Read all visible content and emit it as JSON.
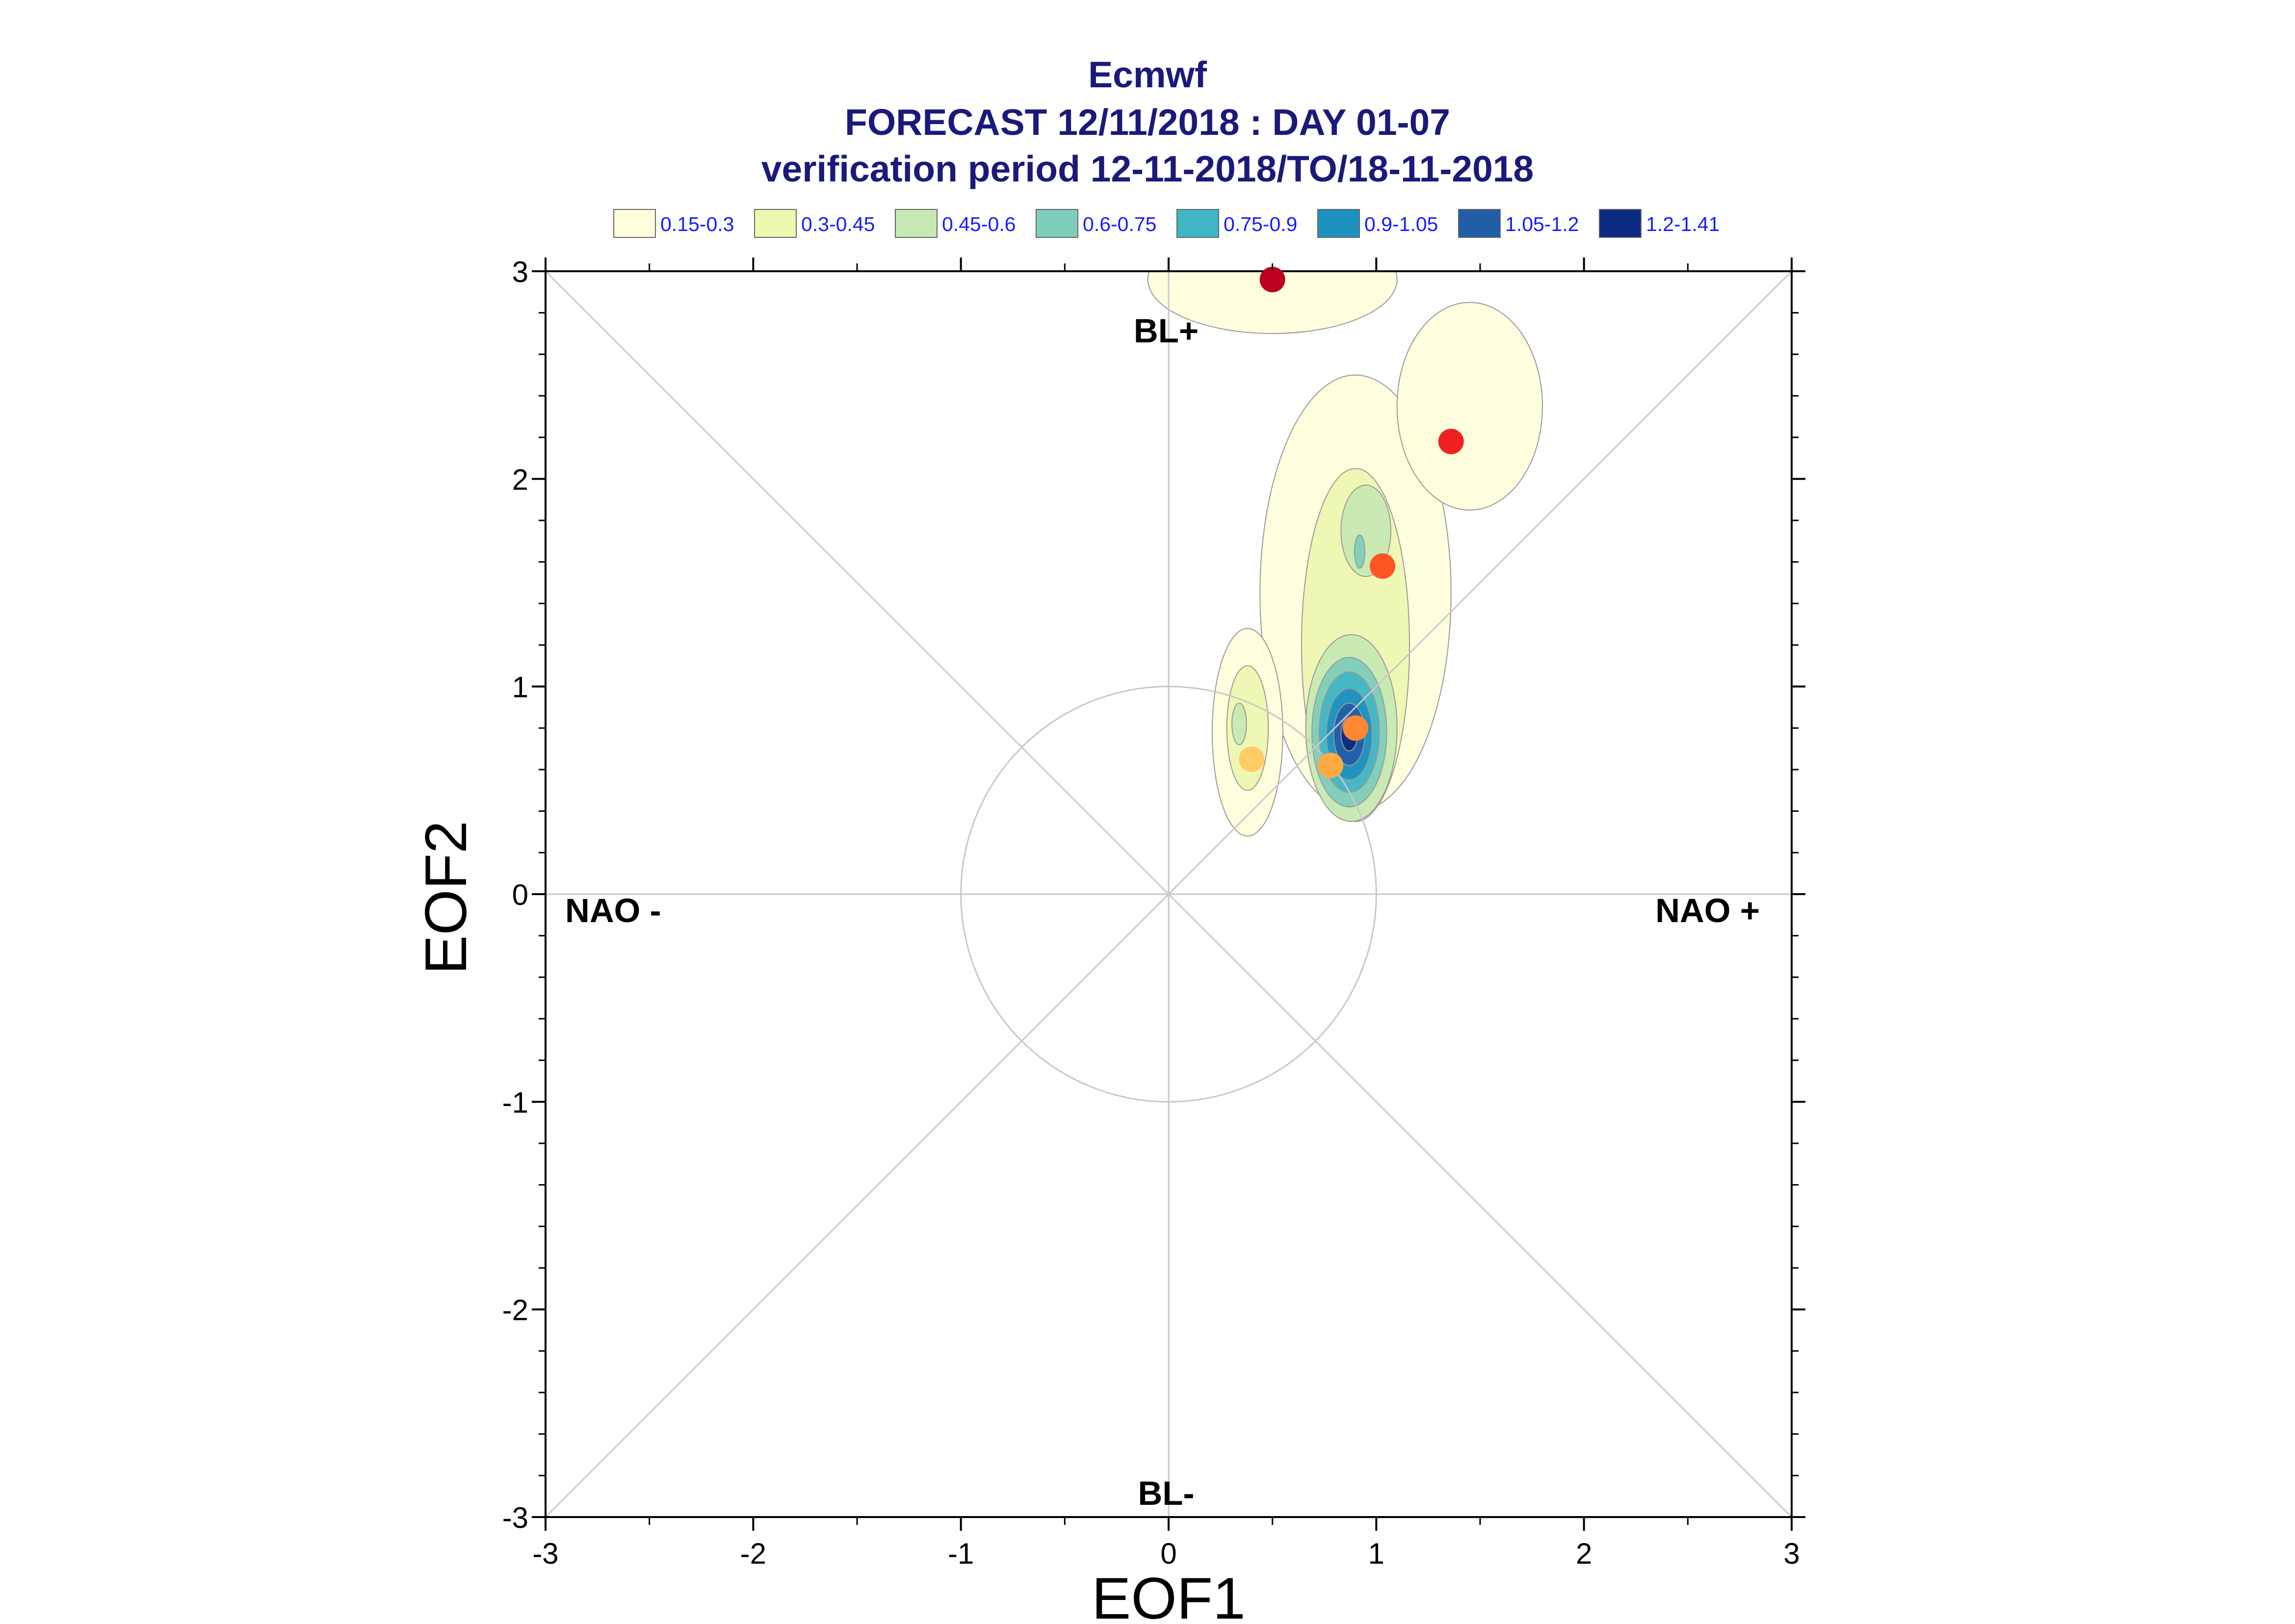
{
  "chart_data": {
    "type": "scatter",
    "title": "Ecmwf",
    "subtitle_lines": [
      "FORECAST 12/11/2018 : DAY 01-07",
      "verification period 12-11-2018/TO/18-11-2018"
    ],
    "xlabel": "EOF1",
    "ylabel": "EOF2",
    "xlim": [
      -3,
      3
    ],
    "ylim": [
      -3,
      3
    ],
    "x_ticks": [
      "-3",
      "-2",
      "-1",
      "0",
      "1",
      "2",
      "3"
    ],
    "y_ticks": [
      "-3",
      "-2",
      "-1",
      "0",
      "1",
      "2",
      "3"
    ],
    "x_tick_values": [
      -3,
      -2,
      -1,
      0,
      1,
      2,
      3
    ],
    "y_tick_values": [
      -3,
      -2,
      -1,
      0,
      1,
      2,
      3
    ],
    "unit_circle_radius": 1,
    "legend": {
      "placement": "top",
      "items": [
        {
          "label": "0.15-0.3",
          "color": "#ffffdd"
        },
        {
          "label": "0.3-0.45",
          "color": "#edf8b1"
        },
        {
          "label": "0.45-0.6",
          "color": "#c7e9b4"
        },
        {
          "label": "0.6-0.75",
          "color": "#7fcdbb"
        },
        {
          "label": "0.75-0.9",
          "color": "#41b6c4"
        },
        {
          "label": "0.9-1.05",
          "color": "#1d91c0"
        },
        {
          "label": "1.05-1.2",
          "color": "#225ea8"
        },
        {
          "label": "1.2-1.41",
          "color": "#0c2c84"
        }
      ]
    },
    "regime_labels": [
      {
        "text": "BL+",
        "position": "top"
      },
      {
        "text": "BL-",
        "position": "bottom"
      },
      {
        "text": "NAO -",
        "position": "left"
      },
      {
        "text": "NAO +",
        "position": "right"
      }
    ],
    "daily_points": [
      {
        "x": 0.4,
        "y": 0.65,
        "color": "#ffcc66"
      },
      {
        "x": 0.78,
        "y": 0.62,
        "color": "#ffaa44"
      },
      {
        "x": 0.9,
        "y": 0.8,
        "color": "#ff8833"
      },
      {
        "x": 1.03,
        "y": 1.58,
        "color": "#ff5522"
      },
      {
        "x": 1.36,
        "y": 2.18,
        "color": "#ee2222"
      },
      {
        "x": 0.5,
        "y": 2.96,
        "color": "#bb0022"
      }
    ],
    "density_blobs": [
      {
        "cx": 0.9,
        "cy": 1.45,
        "rx": 0.46,
        "ry": 1.05,
        "level": 0
      },
      {
        "cx": 1.45,
        "cy": 2.35,
        "rx": 0.35,
        "ry": 0.5,
        "level": 0
      },
      {
        "cx": 0.5,
        "cy": 2.96,
        "rx": 0.6,
        "ry": 0.26,
        "level": 0
      },
      {
        "cx": 0.38,
        "cy": 0.78,
        "rx": 0.17,
        "ry": 0.5,
        "level": 0
      },
      {
        "cx": 0.38,
        "cy": 0.8,
        "rx": 0.1,
        "ry": 0.3,
        "level": 1
      },
      {
        "cx": 0.34,
        "cy": 0.82,
        "rx": 0.035,
        "ry": 0.1,
        "level": 2
      },
      {
        "cx": 0.9,
        "cy": 1.2,
        "rx": 0.26,
        "ry": 0.85,
        "level": 1
      },
      {
        "cx": 0.95,
        "cy": 1.75,
        "rx": 0.12,
        "ry": 0.22,
        "level": 2
      },
      {
        "cx": 0.92,
        "cy": 1.65,
        "rx": 0.025,
        "ry": 0.08,
        "level": 3
      },
      {
        "cx": 0.88,
        "cy": 0.8,
        "rx": 0.22,
        "ry": 0.45,
        "level": 2
      },
      {
        "cx": 0.87,
        "cy": 0.78,
        "rx": 0.18,
        "ry": 0.36,
        "level": 3
      },
      {
        "cx": 0.87,
        "cy": 0.78,
        "rx": 0.145,
        "ry": 0.29,
        "level": 4
      },
      {
        "cx": 0.87,
        "cy": 0.77,
        "rx": 0.11,
        "ry": 0.22,
        "level": 5
      },
      {
        "cx": 0.87,
        "cy": 0.77,
        "rx": 0.075,
        "ry": 0.15,
        "level": 6
      },
      {
        "cx": 0.87,
        "cy": 0.77,
        "rx": 0.04,
        "ry": 0.08,
        "level": 7
      }
    ]
  }
}
